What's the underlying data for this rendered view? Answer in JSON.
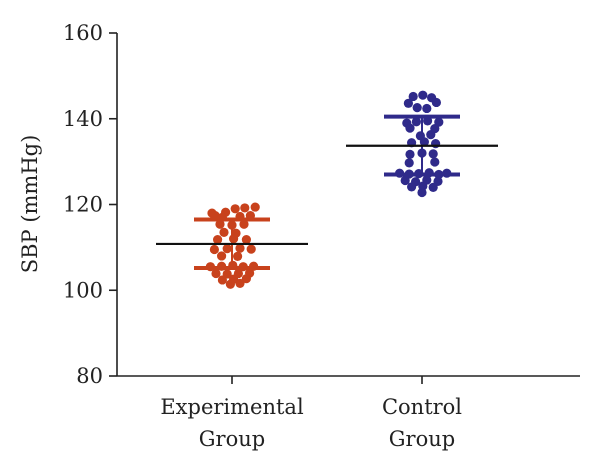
{
  "chart_data": {
    "type": "scatter",
    "ylabel": "SBP (mmHg)",
    "ylim": [
      80,
      160
    ],
    "yticks": [
      "80",
      "100",
      "120",
      "140",
      "160"
    ],
    "categories": [
      {
        "line1": "Experimental",
        "line2": "Group"
      },
      {
        "line1": "Control",
        "line2": "Group"
      }
    ],
    "series": [
      {
        "color": "#c8421c",
        "mean": 110.8,
        "sd_upper": 116.5,
        "sd_lower": 105.2,
        "points": [
          {
            "dx": -0.25,
            "y": 118.0
          },
          {
            "dx": -0.08,
            "y": 118.2
          },
          {
            "dx": 0.04,
            "y": 119.0
          },
          {
            "dx": 0.16,
            "y": 119.2
          },
          {
            "dx": 0.29,
            "y": 119.4
          },
          {
            "dx": -0.21,
            "y": 117.4
          },
          {
            "dx": -0.12,
            "y": 117.0
          },
          {
            "dx": 0.1,
            "y": 117.2
          },
          {
            "dx": 0.23,
            "y": 117.4
          },
          {
            "dx": -0.15,
            "y": 115.4
          },
          {
            "dx": 0.0,
            "y": 115.2
          },
          {
            "dx": 0.15,
            "y": 115.4
          },
          {
            "dx": -0.1,
            "y": 113.5
          },
          {
            "dx": 0.05,
            "y": 113.3
          },
          {
            "dx": -0.18,
            "y": 111.8
          },
          {
            "dx": 0.02,
            "y": 112.0
          },
          {
            "dx": 0.18,
            "y": 111.8
          },
          {
            "dx": -0.22,
            "y": 109.5
          },
          {
            "dx": -0.06,
            "y": 109.7
          },
          {
            "dx": 0.1,
            "y": 109.8
          },
          {
            "dx": 0.24,
            "y": 109.6
          },
          {
            "dx": -0.13,
            "y": 108.0
          },
          {
            "dx": 0.07,
            "y": 107.9
          },
          {
            "dx": -0.27,
            "y": 105.5
          },
          {
            "dx": -0.13,
            "y": 105.6
          },
          {
            "dx": 0.01,
            "y": 105.8
          },
          {
            "dx": 0.14,
            "y": 105.5
          },
          {
            "dx": 0.27,
            "y": 105.6
          },
          {
            "dx": -0.2,
            "y": 103.9
          },
          {
            "dx": -0.06,
            "y": 103.8
          },
          {
            "dx": 0.08,
            "y": 103.9
          },
          {
            "dx": 0.22,
            "y": 104.0
          },
          {
            "dx": -0.12,
            "y": 102.4
          },
          {
            "dx": 0.02,
            "y": 102.6
          },
          {
            "dx": 0.18,
            "y": 102.7
          },
          {
            "dx": -0.02,
            "y": 101.4
          },
          {
            "dx": 0.1,
            "y": 101.6
          }
        ]
      },
      {
        "color": "#2f2a8a",
        "mean": 133.7,
        "sd_upper": 140.5,
        "sd_lower": 127.0,
        "points": [
          {
            "dx": -0.11,
            "y": 145.2
          },
          {
            "dx": 0.01,
            "y": 145.5
          },
          {
            "dx": 0.12,
            "y": 144.9
          },
          {
            "dx": -0.17,
            "y": 143.6
          },
          {
            "dx": 0.18,
            "y": 143.8
          },
          {
            "dx": -0.06,
            "y": 142.6
          },
          {
            "dx": 0.06,
            "y": 142.4
          },
          {
            "dx": -0.19,
            "y": 139.0
          },
          {
            "dx": -0.07,
            "y": 139.3
          },
          {
            "dx": 0.07,
            "y": 139.5
          },
          {
            "dx": 0.21,
            "y": 139.2
          },
          {
            "dx": -0.15,
            "y": 137.8
          },
          {
            "dx": 0.16,
            "y": 137.7
          },
          {
            "dx": -0.02,
            "y": 136.0
          },
          {
            "dx": 0.11,
            "y": 136.3
          },
          {
            "dx": -0.13,
            "y": 134.4
          },
          {
            "dx": 0.03,
            "y": 134.6
          },
          {
            "dx": 0.17,
            "y": 134.2
          },
          {
            "dx": -0.15,
            "y": 131.7
          },
          {
            "dx": 0.0,
            "y": 132.0
          },
          {
            "dx": 0.14,
            "y": 131.8
          },
          {
            "dx": -0.16,
            "y": 129.7
          },
          {
            "dx": 0.16,
            "y": 129.9
          },
          {
            "dx": -0.28,
            "y": 127.3
          },
          {
            "dx": -0.16,
            "y": 127.1
          },
          {
            "dx": -0.04,
            "y": 127.2
          },
          {
            "dx": 0.09,
            "y": 127.4
          },
          {
            "dx": 0.21,
            "y": 127.0
          },
          {
            "dx": 0.31,
            "y": 127.3
          },
          {
            "dx": -0.21,
            "y": 125.6
          },
          {
            "dx": -0.08,
            "y": 125.3
          },
          {
            "dx": 0.06,
            "y": 125.7
          },
          {
            "dx": 0.2,
            "y": 125.4
          },
          {
            "dx": -0.13,
            "y": 124.1
          },
          {
            "dx": 0.01,
            "y": 124.3
          },
          {
            "dx": 0.14,
            "y": 124.0
          },
          {
            "dx": 0.0,
            "y": 122.8
          }
        ]
      }
    ]
  }
}
